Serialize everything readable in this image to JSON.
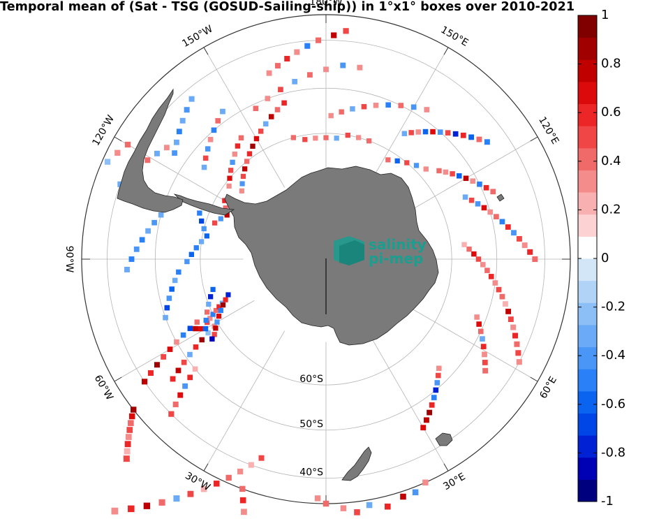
{
  "title": "Temporal mean of (Sat - TSG (GOSUD-Sailing-ship)) in 1°x1° boxes over 2010-2021",
  "logo": {
    "line1": "salinity",
    "line2": "pi-mep"
  },
  "lon_labels": [
    {
      "text": "30°W",
      "angle": -30
    },
    {
      "text": "60°W",
      "angle": -60
    },
    {
      "text": "90°W",
      "angle": -90
    },
    {
      "text": "120°W",
      "angle": -120
    },
    {
      "text": "150°W",
      "angle": -150
    },
    {
      "text": "180°W",
      "angle": 180
    },
    {
      "text": "150°E",
      "angle": 150
    },
    {
      "text": "120°E",
      "angle": 120
    },
    {
      "text": "90°E",
      "angle": 90
    },
    {
      "text": "60°E",
      "angle": 60
    },
    {
      "text": "30°E",
      "angle": 30
    }
  ],
  "lat_labels": [
    {
      "text": "60°S",
      "lat": -60
    },
    {
      "text": "50°S",
      "lat": -50
    },
    {
      "text": "40°S",
      "lat": -40
    }
  ],
  "colorbar": {
    "min": -1,
    "max": 1,
    "ticks": [
      "1",
      "0.8",
      "0.6",
      "0.4",
      "0.2",
      "0",
      "-0.2",
      "-0.4",
      "-0.6",
      "-0.8",
      "-1"
    ],
    "colors": [
      "#00007f",
      "#0000b4",
      "#0021d4",
      "#0046e6",
      "#0a64f0",
      "#2a80f6",
      "#4a96f6",
      "#6aaaf6",
      "#8cbff6",
      "#b0d3f6",
      "#d2e6f8",
      "#ffffff",
      "#fcd2d2",
      "#f8b0b0",
      "#f48c8c",
      "#f06a6a",
      "#f04646",
      "#ec2626",
      "#dc0a0a",
      "#c00000",
      "#a00000",
      "#800000"
    ]
  },
  "colors": {
    "land": "#7a7a7a",
    "land_edge": "#222222",
    "grid": "#b4b4b4",
    "frame": "#333333",
    "logo": "#1a9e8f"
  },
  "map_data": {
    "projection": "south-polar-stereographic",
    "lat_boundary": -35,
    "cells": [
      [
        -35,
        -52,
        0.9
      ],
      [
        -34,
        -51,
        0.7
      ],
      [
        -33,
        -50,
        0.4
      ],
      [
        -32,
        -49,
        0.5
      ],
      [
        -31,
        -48,
        0.3
      ],
      [
        -30,
        -47,
        0.6
      ],
      [
        -29,
        -46,
        0.2
      ],
      [
        -28,
        -45,
        0.5
      ],
      [
        -40,
        -56,
        0.8
      ],
      [
        -42,
        -57,
        0.6
      ],
      [
        -44,
        -58,
        0.9
      ],
      [
        -46,
        -59,
        0.5
      ],
      [
        -48,
        -60,
        0.7
      ],
      [
        -50,
        -61,
        0.3
      ],
      [
        -52,
        -62,
        -0.5
      ],
      [
        -54,
        -63,
        -0.7
      ],
      [
        -56,
        -64,
        0.4
      ],
      [
        -45,
        -52,
        0.6
      ],
      [
        -47,
        -53,
        0.8
      ],
      [
        -49,
        -54,
        0.5
      ],
      [
        -51,
        -55,
        -0.3
      ],
      [
        -53,
        -56,
        0.6
      ],
      [
        -55,
        -57,
        0.9
      ],
      [
        -57,
        -58,
        -0.2
      ],
      [
        -59,
        -59,
        0.3
      ],
      [
        -40,
        -45,
        0.5
      ],
      [
        -42,
        -46,
        0.4
      ],
      [
        -44,
        -47,
        0.7
      ],
      [
        -46,
        -48,
        -0.4
      ],
      [
        -48,
        -49,
        0.6
      ],
      [
        -50,
        -50,
        0.2
      ],
      [
        -55,
        -62,
        0.8
      ],
      [
        -56,
        -61,
        0.7
      ],
      [
        -57,
        -60,
        -0.6
      ],
      [
        -58,
        -62,
        0.5
      ],
      [
        -59,
        -63,
        0.3
      ],
      [
        -60,
        -64,
        -0.5
      ],
      [
        -61,
        -65,
        0.4
      ],
      [
        -62,
        -66,
        0.6
      ],
      [
        -63,
        -67,
        -0.3
      ],
      [
        -20,
        -40,
        0.3
      ],
      [
        -22,
        -38,
        0.6
      ],
      [
        -24,
        -36,
        0.8
      ],
      [
        -26,
        -34,
        0.4
      ],
      [
        -28,
        -32,
        -0.3
      ],
      [
        -30,
        -30,
        0.5
      ],
      [
        -32,
        -28,
        0.2
      ],
      [
        -34,
        -26,
        0.6
      ],
      [
        -36,
        -24,
        0.4
      ],
      [
        -38,
        -22,
        0.3
      ],
      [
        -40,
        -20,
        0.2
      ],
      [
        -42,
        -18,
        0.5
      ],
      [
        -35,
        -20,
        0.4
      ],
      [
        -33,
        -19,
        0.6
      ],
      [
        -31,
        -18,
        0.3
      ],
      [
        -29,
        -17,
        0.5
      ],
      [
        -27,
        -16,
        0.2
      ],
      [
        -36,
        -2,
        0.3
      ],
      [
        -35,
        0,
        0.4
      ],
      [
        -34,
        4,
        0.3
      ],
      [
        -33,
        7,
        0.5
      ],
      [
        -34,
        10,
        -0.3
      ],
      [
        -33,
        14,
        0.6
      ],
      [
        -34,
        18,
        0.8
      ],
      [
        -34,
        21,
        -0.4
      ],
      [
        -35,
        24,
        0.3
      ],
      [
        -45,
        30,
        0.7
      ],
      [
        -46,
        32,
        0.8
      ],
      [
        -47,
        34,
        0.9
      ],
      [
        -48,
        36,
        0.6
      ],
      [
        -49,
        38,
        -0.5
      ],
      [
        -50,
        40,
        -0.8
      ],
      [
        -51,
        42,
        -0.4
      ],
      [
        -52,
        44,
        0.5
      ],
      [
        -53,
        46,
        0.3
      ],
      [
        -45,
        55,
        0.4
      ],
      [
        -46,
        57,
        0.5
      ],
      [
        -47,
        59,
        0.3
      ],
      [
        -48,
        61,
        0.6
      ],
      [
        -49,
        63,
        -0.3
      ],
      [
        -50,
        65,
        0.4
      ],
      [
        -51,
        67,
        0.7
      ],
      [
        -52,
        69,
        0.3
      ],
      [
        -40,
        62,
        0.3
      ],
      [
        -41,
        64,
        0.5
      ],
      [
        -42,
        66,
        0.4
      ],
      [
        -43,
        68,
        0.6
      ],
      [
        -44,
        70,
        0.3
      ],
      [
        -45,
        72,
        0.5
      ],
      [
        -46,
        74,
        0.8
      ],
      [
        -47,
        76,
        0.2
      ],
      [
        -48,
        78,
        0.4
      ],
      [
        -49,
        80,
        0.5
      ],
      [
        -50,
        82,
        0.3
      ],
      [
        -51,
        84,
        0.6
      ],
      [
        -52,
        86,
        0.4
      ],
      [
        -53,
        88,
        0.3
      ],
      [
        -54,
        90,
        0.5
      ],
      [
        -55,
        92,
        0.7
      ],
      [
        -56,
        94,
        0.4
      ],
      [
        -57,
        96,
        0.2
      ],
      [
        -42,
        90,
        0.4
      ],
      [
        -43,
        92,
        0.6
      ],
      [
        -44,
        94,
        0.3
      ],
      [
        -45,
        96,
        0.5
      ],
      [
        -46,
        98,
        -0.4
      ],
      [
        -47,
        100,
        0.6
      ],
      [
        -48,
        102,
        -0.5
      ],
      [
        -49,
        104,
        0.4
      ],
      [
        -50,
        106,
        0.3
      ],
      [
        -51,
        108,
        0.7
      ],
      [
        -52,
        110,
        -0.4
      ],
      [
        -53,
        112,
        0.5
      ],
      [
        -54,
        114,
        -0.3
      ],
      [
        -48,
        112,
        0.4
      ],
      [
        -49,
        114,
        0.6
      ],
      [
        -50,
        116,
        -0.5
      ],
      [
        -51,
        118,
        0.3
      ],
      [
        -52,
        120,
        0.8
      ],
      [
        -53,
        122,
        -0.6
      ],
      [
        -54,
        124,
        0.5
      ],
      [
        -55,
        126,
        0.3
      ],
      [
        -56,
        128,
        0.4
      ],
      [
        -58,
        132,
        0.3
      ],
      [
        -59,
        136,
        -0.4
      ],
      [
        -60,
        140,
        0.5
      ],
      [
        -61,
        144,
        -0.6
      ],
      [
        -62,
        148,
        0.4
      ],
      [
        -44,
        126,
        -0.5
      ],
      [
        -45,
        128,
        0.4
      ],
      [
        -46,
        130,
        -0.6
      ],
      [
        -47,
        132,
        0.6
      ],
      [
        -48,
        134,
        -0.8
      ],
      [
        -49,
        136,
        0.5
      ],
      [
        -50,
        138,
        -0.4
      ],
      [
        -51,
        140,
        0.7
      ],
      [
        -52,
        142,
        -0.6
      ],
      [
        -53,
        144,
        0.3
      ],
      [
        -54,
        146,
        0.5
      ],
      [
        -55,
        148,
        -0.3
      ],
      [
        -48,
        146,
        0.3
      ],
      [
        -49,
        150,
        -0.4
      ],
      [
        -50,
        154,
        0.4
      ],
      [
        -51,
        158,
        -0.5
      ],
      [
        -52,
        162,
        0.3
      ],
      [
        -53,
        166,
        0.5
      ],
      [
        -54,
        170,
        -0.3
      ],
      [
        -55,
        174,
        0.4
      ],
      [
        -56,
        178,
        0.3
      ],
      [
        -60,
        160,
        0.4
      ],
      [
        -60,
        165,
        0.3
      ],
      [
        -60,
        170,
        0.5
      ],
      [
        -61,
        175,
        -0.3
      ],
      [
        -61,
        180,
        0.4
      ],
      [
        -61,
        -175,
        0.3
      ],
      [
        -61,
        -170,
        0.5
      ],
      [
        -60,
        -165,
        0.4
      ],
      [
        -45,
        170,
        0.3
      ],
      [
        -45,
        175,
        -0.4
      ],
      [
        -46,
        180,
        0.3
      ],
      [
        -47,
        -175,
        0.4
      ],
      [
        -48,
        -170,
        -0.3
      ],
      [
        -49,
        -165,
        0.5
      ],
      [
        -50,
        -160,
        0.3
      ],
      [
        -51,
        -155,
        0.4
      ],
      [
        -38,
        175,
        0.5
      ],
      [
        -39,
        178,
        0.8
      ],
      [
        -40,
        -178,
        0.4
      ],
      [
        -41,
        -175,
        -0.5
      ],
      [
        -42,
        -172,
        0.3
      ],
      [
        -43,
        -169,
        0.6
      ],
      [
        -44,
        -166,
        0.4
      ],
      [
        -45,
        -163,
        0.3
      ],
      [
        -52,
        -165,
        0.6
      ],
      [
        -53,
        -162,
        0.4
      ],
      [
        -54,
        -159,
        0.8
      ],
      [
        -55,
        -156,
        -0.3
      ],
      [
        -56,
        -153,
        0.5
      ],
      [
        -57,
        -150,
        0.7
      ],
      [
        -58,
        -147,
        0.9
      ],
      [
        -59,
        -144,
        0.6
      ],
      [
        -60,
        -141,
        0.4
      ],
      [
        -61,
        -138,
        0.8
      ],
      [
        -62,
        -135,
        0.5
      ],
      [
        -63,
        -132,
        -0.4
      ],
      [
        -64,
        -129,
        0.3
      ],
      [
        -55,
        -145,
        0.4
      ],
      [
        -56,
        -142,
        0.6
      ],
      [
        -57,
        -139,
        0.3
      ],
      [
        -58,
        -136,
        -0.4
      ],
      [
        -59,
        -133,
        0.5
      ],
      [
        -60,
        -130,
        0.7
      ],
      [
        -61,
        -127,
        0.3
      ],
      [
        -48,
        -145,
        -0.3
      ],
      [
        -49,
        -142,
        0.4
      ],
      [
        -50,
        -139,
        -0.5
      ],
      [
        -51,
        -136,
        0.3
      ],
      [
        -52,
        -133,
        -0.4
      ],
      [
        -53,
        -130,
        0.5
      ],
      [
        -54,
        -127,
        -0.3
      ],
      [
        -42,
        -140,
        -0.3
      ],
      [
        -43,
        -137,
        -0.4
      ],
      [
        -44,
        -134,
        -0.3
      ],
      [
        -45,
        -131,
        -0.5
      ],
      [
        -46,
        -128,
        -0.3
      ],
      [
        -47,
        -125,
        -0.4
      ],
      [
        -62,
        -120,
        0.6
      ],
      [
        -63,
        -117,
        0.4
      ],
      [
        -64,
        -114,
        0.8
      ],
      [
        -63,
        -111,
        -0.4
      ],
      [
        -62,
        -108,
        0.5
      ],
      [
        -58,
        -110,
        -0.5
      ],
      [
        -59,
        -107,
        -0.7
      ],
      [
        -60,
        -104,
        -0.4
      ],
      [
        -61,
        -101,
        -0.6
      ],
      [
        -60,
        -98,
        -0.3
      ],
      [
        -59,
        -95,
        -0.5
      ],
      [
        -58,
        -92,
        -0.6
      ],
      [
        -57,
        -89,
        -0.4
      ],
      [
        -55,
        -85,
        -0.5
      ],
      [
        -54,
        -82,
        -0.3
      ],
      [
        -53,
        -79,
        -0.6
      ],
      [
        -52,
        -76,
        -0.4
      ],
      [
        -51,
        -73,
        -0.7
      ],
      [
        -50,
        -70,
        -0.3
      ],
      [
        -50,
        -105,
        -0.3
      ],
      [
        -49,
        -102,
        -0.4
      ],
      [
        -48,
        -99,
        -0.3
      ],
      [
        -47,
        -96,
        -0.5
      ],
      [
        -46,
        -93,
        -0.4
      ],
      [
        -45,
        -90,
        -0.5
      ],
      [
        -44,
        -87,
        -0.3
      ],
      [
        -40,
        -110,
        -0.3
      ],
      [
        -41,
        -113,
        -0.2
      ],
      [
        -42,
        -116,
        -0.3
      ],
      [
        -43,
        -119,
        0.4
      ],
      [
        -44,
        -122,
        -0.3
      ],
      [
        -45,
        -125,
        0.3
      ],
      [
        -38,
        -120,
        0.4
      ],
      [
        -37,
        -117,
        0.3
      ],
      [
        -36,
        -114,
        -0.2
      ],
      [
        -65,
        -70,
        -0.8
      ],
      [
        -64,
        -68,
        0.6
      ],
      [
        -63,
        -66,
        0.9
      ],
      [
        -62,
        -64,
        -0.5
      ],
      [
        -61,
        -62,
        0.7
      ],
      [
        -60,
        -60,
        -0.4
      ],
      [
        -59,
        -58,
        0.8
      ],
      [
        -58,
        -56,
        0.5
      ],
      [
        -57,
        -55,
        -0.9
      ],
      [
        -62,
        -75,
        -0.6
      ],
      [
        -61,
        -72,
        -0.8
      ],
      [
        -60,
        -69,
        -0.3
      ],
      [
        -59,
        -66,
        0.4
      ],
      [
        -58,
        -63,
        -0.5
      ]
    ]
  }
}
